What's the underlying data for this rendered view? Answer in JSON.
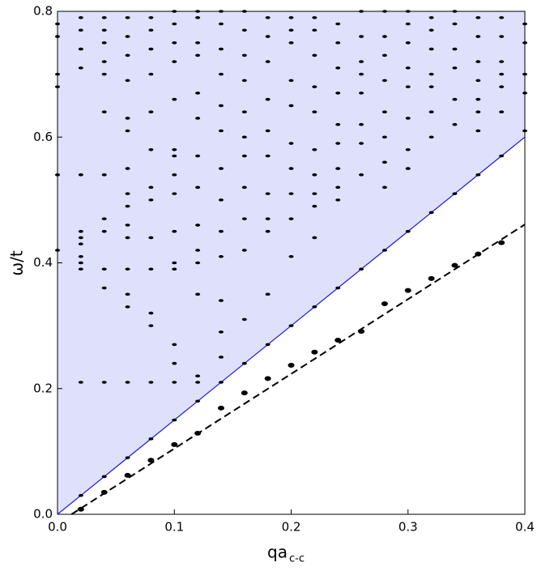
{
  "chart_data": {
    "type": "scatter",
    "y_label": "ω/t",
    "x_label": "qa",
    "x_label_subscript": "c-c",
    "xlim": [
      0,
      0.4
    ],
    "ylim": [
      0,
      0.8
    ],
    "xticks": [
      {
        "value": 0,
        "label": "0.0"
      },
      0.1,
      0.2,
      0.3,
      0.4
    ],
    "yticks": [
      {
        "value": 0,
        "label": "0.0"
      },
      0.2,
      0.4,
      0.6,
      0.8
    ],
    "region_fill": "#dfe0fb",
    "lines": [
      {
        "x": [
          0,
          0.4
        ],
        "values": [
          0,
          0.6
        ],
        "color": "#1a1adb",
        "dashed": false
      },
      {
        "x": [
          0.012,
          0.4
        ],
        "values": [
          0,
          0.461
        ],
        "color": "#000000",
        "dashed": true
      }
    ],
    "series": [
      {
        "color": "#000000",
        "size": "large",
        "x": [
          0.02,
          0.04,
          0.06,
          0.08,
          0.1,
          0.12,
          0.14,
          0.16,
          0.18,
          0.2,
          0.22,
          0.24,
          0.26,
          0.28,
          0.3,
          0.32,
          0.34,
          0.36,
          0.38
        ],
        "values": [
          0.008,
          0.035,
          0.062,
          0.086,
          0.111,
          0.129,
          0.169,
          0.193,
          0.216,
          0.237,
          0.258,
          0.277,
          0.291,
          0.335,
          0.356,
          0.375,
          0.396,
          0.414,
          0.432
        ]
      },
      {
        "color": "#000000",
        "size": "small",
        "x": [
          0.02,
          0.04,
          0.06,
          0.08,
          0.1,
          0.12,
          0.14,
          0.16,
          0.18,
          0.2,
          0.22,
          0.24,
          0.26,
          0.28,
          0.3,
          0.32,
          0.34,
          0.36,
          0.38
        ],
        "values": [
          0.03,
          0.06,
          0.09,
          0.12,
          0.15,
          0.18,
          0.21,
          0.24,
          0.27,
          0.3,
          0.33,
          0.36,
          0.39,
          0.42,
          0.45,
          0.48,
          0.51,
          0.54,
          0.57
        ]
      },
      {
        "color": "#000000",
        "size": "small",
        "points": [
          [
            0,
            0.78
          ],
          [
            0,
            0.76
          ],
          [
            0,
            0.7
          ],
          [
            0,
            0.68
          ],
          [
            0,
            0.54
          ],
          [
            0,
            0.42
          ],
          [
            0.02,
            0.79
          ],
          [
            0.02,
            0.77
          ],
          [
            0.02,
            0.74
          ],
          [
            0.02,
            0.71
          ],
          [
            0.02,
            0.54
          ],
          [
            0.02,
            0.45
          ],
          [
            0.02,
            0.44
          ],
          [
            0.02,
            0.43
          ],
          [
            0.02,
            0.41
          ],
          [
            0.02,
            0.4
          ],
          [
            0.02,
            0.39
          ],
          [
            0.02,
            0.21
          ],
          [
            0.04,
            0.79
          ],
          [
            0.04,
            0.77
          ],
          [
            0.04,
            0.75
          ],
          [
            0.04,
            0.72
          ],
          [
            0.04,
            0.7
          ],
          [
            0.04,
            0.64
          ],
          [
            0.04,
            0.54
          ],
          [
            0.04,
            0.47
          ],
          [
            0.04,
            0.45
          ],
          [
            0.04,
            0.39
          ],
          [
            0.04,
            0.36
          ],
          [
            0.04,
            0.21
          ],
          [
            0.06,
            0.79
          ],
          [
            0.06,
            0.76
          ],
          [
            0.06,
            0.73
          ],
          [
            0.06,
            0.69
          ],
          [
            0.06,
            0.63
          ],
          [
            0.06,
            0.61
          ],
          [
            0.06,
            0.55
          ],
          [
            0.06,
            0.51
          ],
          [
            0.06,
            0.49
          ],
          [
            0.06,
            0.46
          ],
          [
            0.06,
            0.44
          ],
          [
            0.06,
            0.39
          ],
          [
            0.06,
            0.35
          ],
          [
            0.06,
            0.33
          ],
          [
            0.06,
            0.21
          ],
          [
            0.08,
            0.79
          ],
          [
            0.08,
            0.77
          ],
          [
            0.08,
            0.74
          ],
          [
            0.08,
            0.7
          ],
          [
            0.08,
            0.64
          ],
          [
            0.08,
            0.58
          ],
          [
            0.08,
            0.52
          ],
          [
            0.08,
            0.5
          ],
          [
            0.08,
            0.44
          ],
          [
            0.08,
            0.39
          ],
          [
            0.08,
            0.32
          ],
          [
            0.08,
            0.3
          ],
          [
            0.08,
            0.21
          ],
          [
            0.1,
            0.8
          ],
          [
            0.1,
            0.78
          ],
          [
            0.1,
            0.75
          ],
          [
            0.1,
            0.72
          ],
          [
            0.1,
            0.66
          ],
          [
            0.1,
            0.58
          ],
          [
            0.1,
            0.57
          ],
          [
            0.1,
            0.54
          ],
          [
            0.1,
            0.51
          ],
          [
            0.1,
            0.45
          ],
          [
            0.1,
            0.4
          ],
          [
            0.1,
            0.39
          ],
          [
            0.1,
            0.27
          ],
          [
            0.1,
            0.24
          ],
          [
            0.1,
            0.21
          ],
          [
            0.12,
            0.8
          ],
          [
            0.12,
            0.79
          ],
          [
            0.12,
            0.75
          ],
          [
            0.12,
            0.73
          ],
          [
            0.12,
            0.67
          ],
          [
            0.12,
            0.63
          ],
          [
            0.12,
            0.57
          ],
          [
            0.12,
            0.52
          ],
          [
            0.12,
            0.46
          ],
          [
            0.12,
            0.42
          ],
          [
            0.12,
            0.4
          ],
          [
            0.12,
            0.35
          ],
          [
            0.12,
            0.22
          ],
          [
            0.12,
            0.21
          ],
          [
            0.14,
            0.8
          ],
          [
            0.14,
            0.78
          ],
          [
            0.14,
            0.74
          ],
          [
            0.14,
            0.7
          ],
          [
            0.14,
            0.65
          ],
          [
            0.14,
            0.61
          ],
          [
            0.14,
            0.55
          ],
          [
            0.14,
            0.5
          ],
          [
            0.14,
            0.45
          ],
          [
            0.14,
            0.41
          ],
          [
            0.14,
            0.34
          ],
          [
            0.14,
            0.29
          ],
          [
            0.14,
            0.25
          ],
          [
            0.16,
            0.8
          ],
          [
            0.16,
            0.77
          ],
          [
            0.16,
            0.73
          ],
          [
            0.16,
            0.69
          ],
          [
            0.16,
            0.64
          ],
          [
            0.16,
            0.6
          ],
          [
            0.16,
            0.57
          ],
          [
            0.16,
            0.52
          ],
          [
            0.16,
            0.47
          ],
          [
            0.16,
            0.42
          ],
          [
            0.16,
            0.31
          ],
          [
            0.18,
            0.79
          ],
          [
            0.18,
            0.76
          ],
          [
            0.18,
            0.72
          ],
          [
            0.18,
            0.66
          ],
          [
            0.18,
            0.61
          ],
          [
            0.18,
            0.57
          ],
          [
            0.18,
            0.51
          ],
          [
            0.18,
            0.47
          ],
          [
            0.18,
            0.45
          ],
          [
            0.18,
            0.35
          ],
          [
            0.2,
            0.79
          ],
          [
            0.2,
            0.77
          ],
          [
            0.2,
            0.75
          ],
          [
            0.2,
            0.69
          ],
          [
            0.2,
            0.65
          ],
          [
            0.2,
            0.59
          ],
          [
            0.2,
            0.55
          ],
          [
            0.2,
            0.51
          ],
          [
            0.2,
            0.47
          ],
          [
            0.2,
            0.41
          ],
          [
            0.22,
            0.79
          ],
          [
            0.22,
            0.77
          ],
          [
            0.22,
            0.73
          ],
          [
            0.22,
            0.68
          ],
          [
            0.22,
            0.64
          ],
          [
            0.22,
            0.58
          ],
          [
            0.22,
            0.54
          ],
          [
            0.22,
            0.51
          ],
          [
            0.22,
            0.49
          ],
          [
            0.22,
            0.44
          ],
          [
            0.24,
            0.78
          ],
          [
            0.24,
            0.75
          ],
          [
            0.24,
            0.71
          ],
          [
            0.24,
            0.67
          ],
          [
            0.24,
            0.62
          ],
          [
            0.24,
            0.59
          ],
          [
            0.24,
            0.55
          ],
          [
            0.24,
            0.52
          ],
          [
            0.24,
            0.5
          ],
          [
            0.26,
            0.8
          ],
          [
            0.26,
            0.76
          ],
          [
            0.26,
            0.72
          ],
          [
            0.26,
            0.7
          ],
          [
            0.26,
            0.67
          ],
          [
            0.26,
            0.62
          ],
          [
            0.26,
            0.59
          ],
          [
            0.26,
            0.54
          ],
          [
            0.28,
            0.8
          ],
          [
            0.28,
            0.76
          ],
          [
            0.28,
            0.73
          ],
          [
            0.28,
            0.69
          ],
          [
            0.28,
            0.64
          ],
          [
            0.28,
            0.6
          ],
          [
            0.28,
            0.56
          ],
          [
            0.28,
            0.52
          ],
          [
            0.3,
            0.8
          ],
          [
            0.3,
            0.78
          ],
          [
            0.3,
            0.75
          ],
          [
            0.3,
            0.71
          ],
          [
            0.3,
            0.68
          ],
          [
            0.3,
            0.63
          ],
          [
            0.3,
            0.58
          ],
          [
            0.3,
            0.55
          ],
          [
            0.32,
            0.79
          ],
          [
            0.32,
            0.77
          ],
          [
            0.32,
            0.74
          ],
          [
            0.32,
            0.7
          ],
          [
            0.32,
            0.68
          ],
          [
            0.32,
            0.64
          ],
          [
            0.32,
            0.6
          ],
          [
            0.34,
            0.8
          ],
          [
            0.34,
            0.78
          ],
          [
            0.34,
            0.74
          ],
          [
            0.34,
            0.71
          ],
          [
            0.34,
            0.66
          ],
          [
            0.34,
            0.62
          ],
          [
            0.36,
            0.79
          ],
          [
            0.36,
            0.76
          ],
          [
            0.36,
            0.72
          ],
          [
            0.36,
            0.69
          ],
          [
            0.36,
            0.66
          ],
          [
            0.36,
            0.64
          ],
          [
            0.36,
            0.61
          ],
          [
            0.38,
            0.79
          ],
          [
            0.38,
            0.76
          ],
          [
            0.38,
            0.72
          ],
          [
            0.38,
            0.7
          ],
          [
            0.38,
            0.68
          ],
          [
            0.38,
            0.64
          ],
          [
            0.4,
            0.78
          ],
          [
            0.4,
            0.75
          ],
          [
            0.4,
            0.7
          ],
          [
            0.4,
            0.67
          ],
          [
            0.4,
            0.61
          ]
        ]
      }
    ]
  }
}
